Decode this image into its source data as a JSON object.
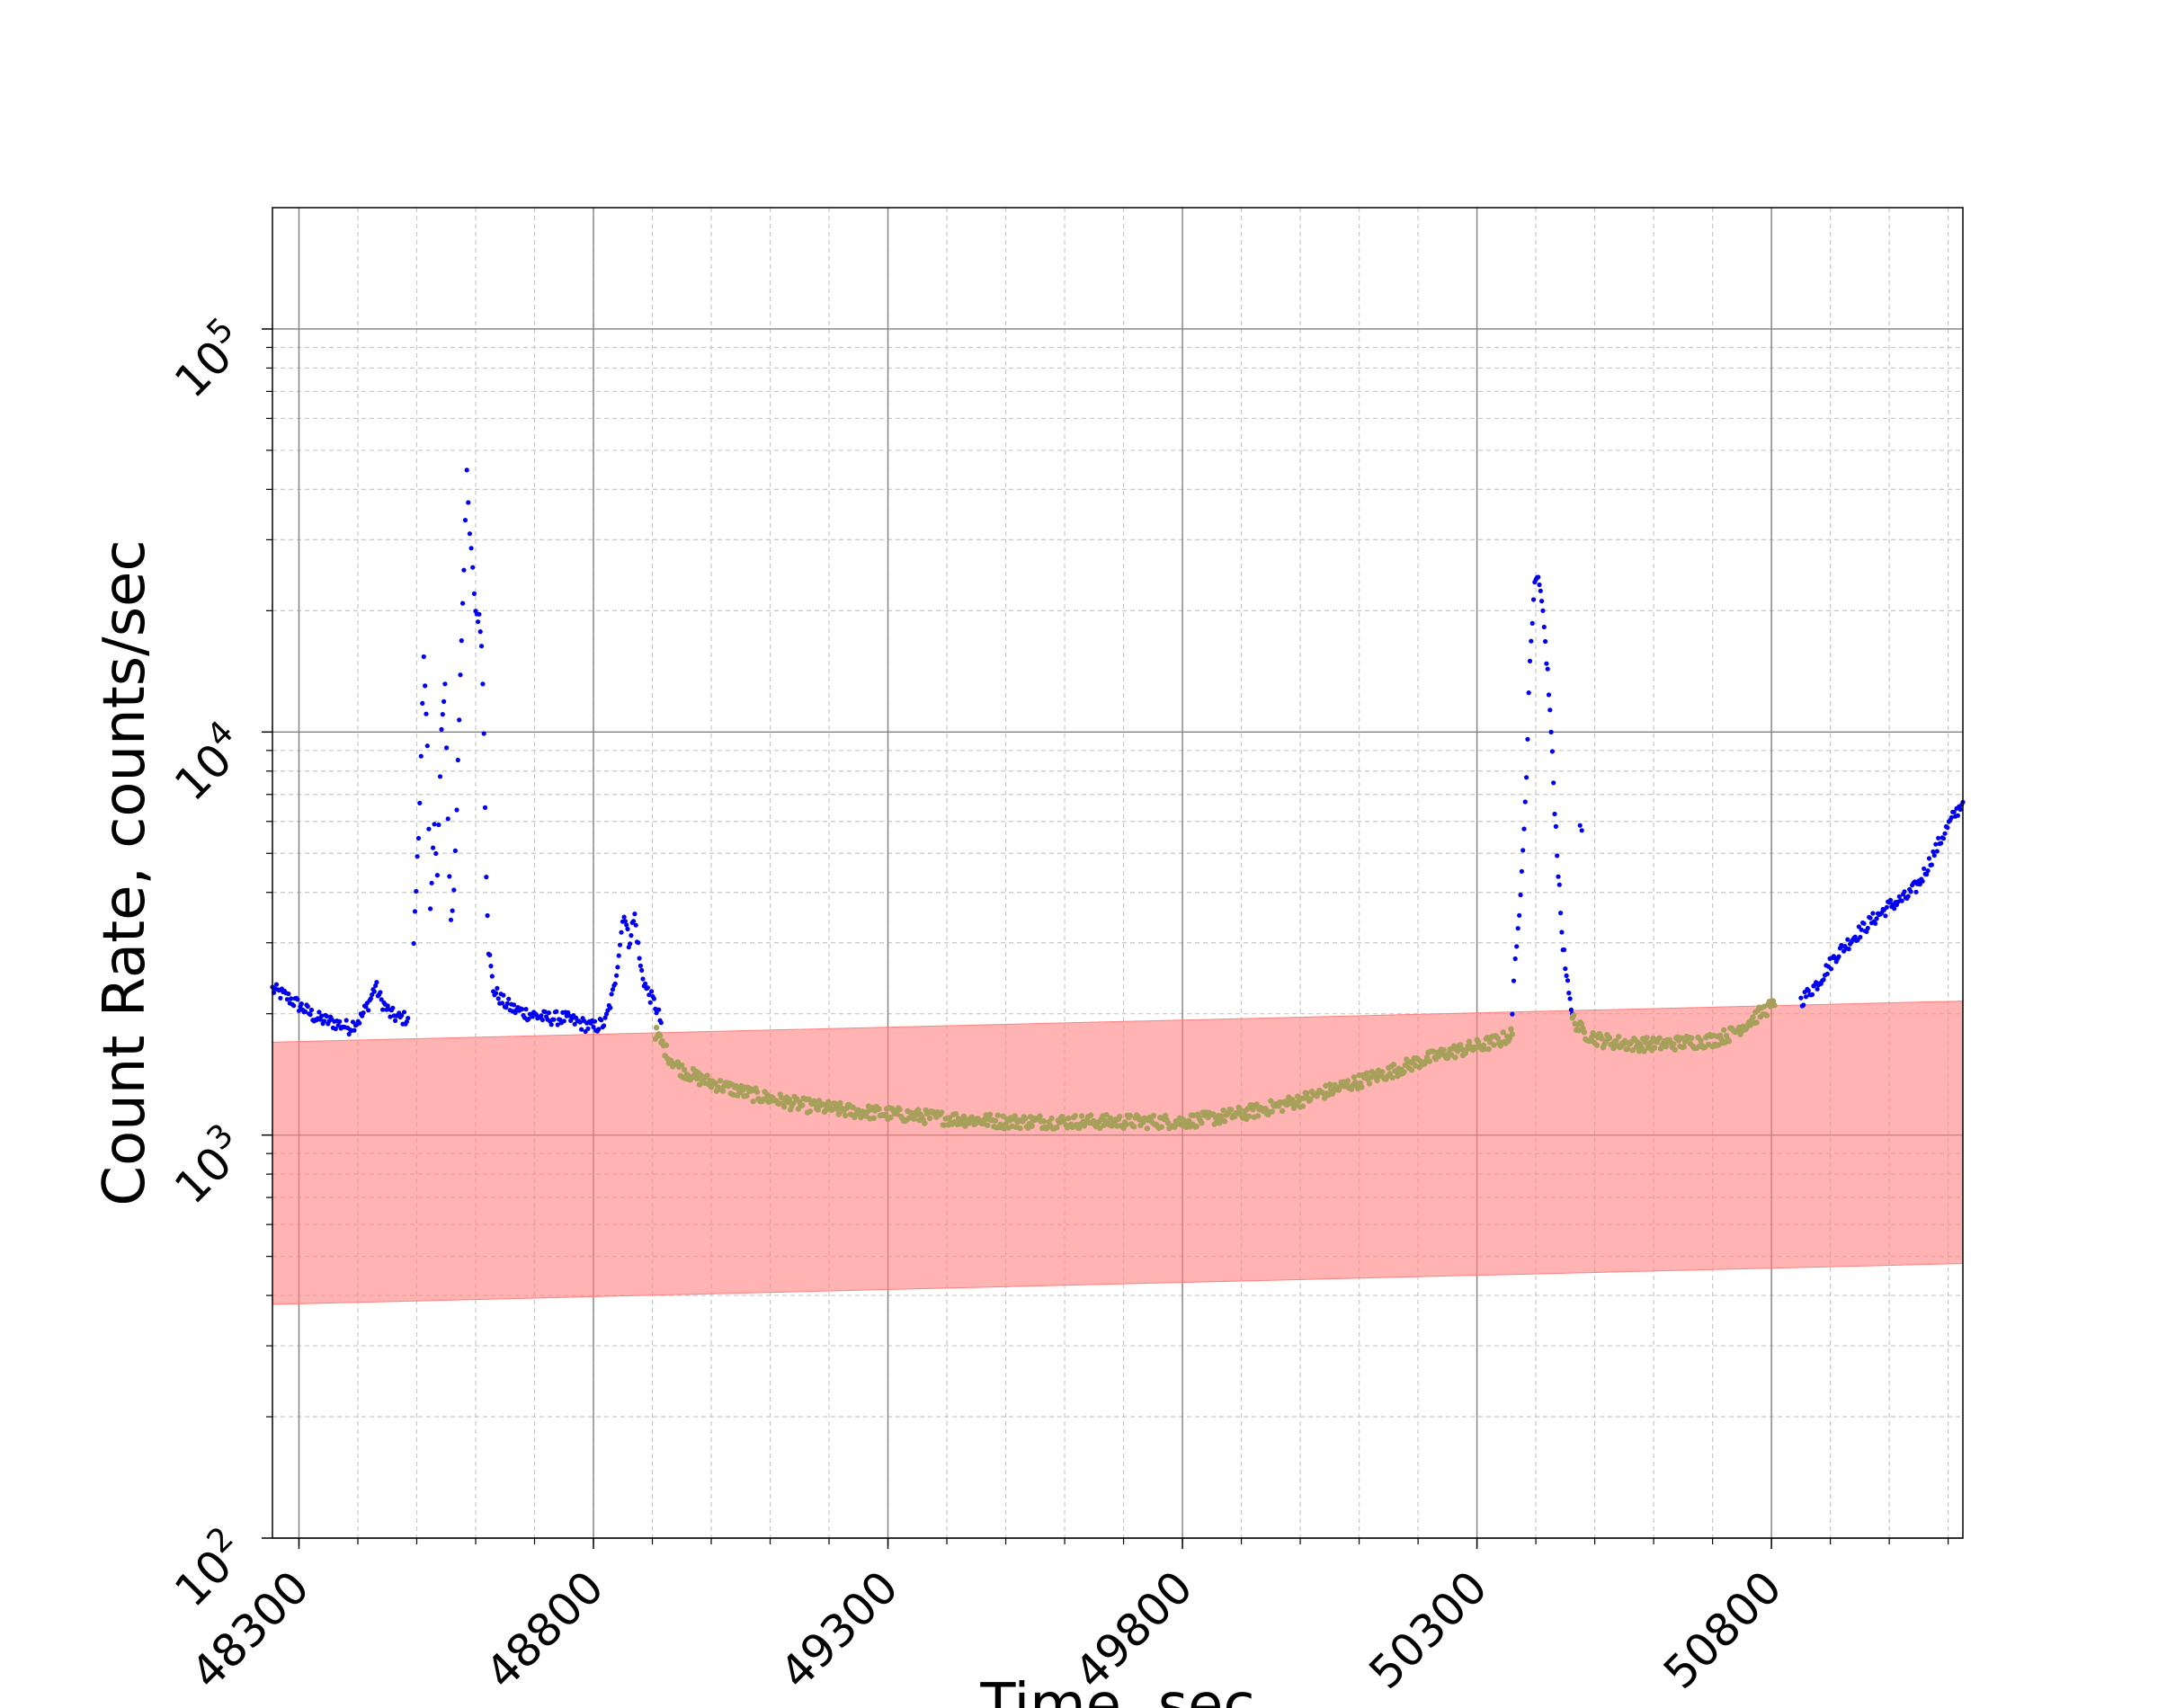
{
  "chart_data": {
    "type": "scatter",
    "title": "",
    "xlabel": "Time, sec",
    "ylabel": "Count Rate, counts/sec",
    "xlim": [
      48255,
      51125
    ],
    "ylim": [
      100,
      200000
    ],
    "yscale": "log",
    "grid": true,
    "x_ticks": [
      "48300",
      "48800",
      "49300",
      "49800",
      "50300",
      "50800"
    ],
    "x_tick_values": [
      48300,
      48800,
      49300,
      49800,
      50300,
      50800
    ],
    "y_tick_labels": [
      {
        "base": "10",
        "exp": "2",
        "value": 100
      },
      {
        "base": "10",
        "exp": "3",
        "value": 1000
      },
      {
        "base": "10",
        "exp": "4",
        "value": 10000
      },
      {
        "base": "10",
        "exp": "5",
        "value": 100000
      }
    ],
    "colors": {
      "blue_points": "#0000ee",
      "olive_points": "#a7a05a",
      "band": "#ff8080"
    },
    "band": {
      "x": [
        48255,
        51125
      ],
      "lower": [
        380,
        480
      ],
      "upper": [
        1700,
        2150
      ]
    },
    "series": [
      {
        "color_key": "blue_points",
        "segments": [
          [
            [
              48255,
              2300
            ],
            [
              48280,
              2200
            ],
            [
              48300,
              2100
            ],
            [
              48330,
              1950
            ],
            [
              48360,
              1900
            ],
            [
              48385,
              1850
            ],
            [
              48405,
              1950
            ],
            [
              48420,
              2150
            ],
            [
              48430,
              2350
            ],
            [
              48440,
              2150
            ],
            [
              48455,
              2000
            ],
            [
              48470,
              1950
            ],
            [
              48485,
              1950
            ]
          ],
          [
            [
              48495,
              3000
            ],
            [
              48505,
              6500
            ],
            [
              48512,
              16000
            ],
            [
              48518,
              9000
            ],
            [
              48523,
              3500
            ],
            [
              48530,
              6000
            ],
            [
              48535,
              4500
            ],
            [
              48542,
              10000
            ],
            [
              48548,
              13000
            ],
            [
              48553,
              6000
            ],
            [
              48558,
              3400
            ],
            [
              48563,
              4000
            ],
            [
              48568,
              6500
            ],
            [
              48574,
              14000
            ],
            [
              48580,
              26000
            ],
            [
              48585,
              43000
            ],
            [
              48590,
              31000
            ],
            [
              48595,
              25000
            ],
            [
              48600,
              20000
            ],
            [
              48606,
              19000
            ],
            [
              48610,
              17000
            ],
            [
              48614,
              10000
            ],
            [
              48618,
              4500
            ],
            [
              48622,
              2900
            ],
            [
              48630,
              2300
            ],
            [
              48645,
              2150
            ],
            [
              48665,
              2050
            ],
            [
              48690,
              2000
            ],
            [
              48720,
              1950
            ],
            [
              48750,
              1950
            ],
            [
              48775,
              1900
            ],
            [
              48800,
              1850
            ],
            [
              48820,
              1900
            ],
            [
              48835,
              2300
            ],
            [
              48845,
              3000
            ],
            [
              48852,
              3600
            ],
            [
              48860,
              3000
            ],
            [
              48870,
              3500
            ],
            [
              48880,
              2600
            ],
            [
              48890,
              2300
            ],
            [
              48905,
              2100
            ],
            [
              48915,
              1900
            ]
          ],
          [
            [
              50360,
              2000
            ],
            [
              50365,
              2700
            ],
            [
              50372,
              3500
            ],
            [
              50378,
              5000
            ],
            [
              50384,
              8000
            ],
            [
              50390,
              15000
            ],
            [
              50396,
              22000
            ],
            [
              50402,
              24000
            ],
            [
              50408,
              22000
            ],
            [
              50414,
              18000
            ],
            [
              50420,
              14000
            ],
            [
              50426,
              10000
            ],
            [
              50432,
              6500
            ],
            [
              50438,
              4500
            ],
            [
              50444,
              3200
            ],
            [
              50450,
              2600
            ],
            [
              50456,
              2200
            ],
            [
              50462,
              2000
            ]
          ],
          [
            [
              50475,
              6000
            ],
            [
              50478,
              5700
            ]
          ],
          [
            [
              50850,
              2150
            ],
            [
              50880,
              2400
            ],
            [
              50910,
              2800
            ],
            [
              50940,
              3100
            ],
            [
              50970,
              3400
            ],
            [
              51000,
              3700
            ],
            [
              51030,
              3900
            ],
            [
              51050,
              4200
            ],
            [
              51070,
              4800
            ],
            [
              51090,
              5500
            ],
            [
              51110,
              6200
            ],
            [
              51125,
              6700
            ]
          ]
        ]
      },
      {
        "color_key": "olive_points",
        "segments": [
          [
            [
              48905,
              1800
            ],
            [
              48915,
              1700
            ],
            [
              48930,
              1550
            ],
            [
              48950,
              1450
            ],
            [
              48980,
              1380
            ],
            [
              49020,
              1320
            ],
            [
              49080,
              1250
            ],
            [
              49150,
              1190
            ],
            [
              49230,
              1150
            ],
            [
              49300,
              1130
            ],
            [
              49400,
              1100
            ],
            [
              49500,
              1080
            ],
            [
              49600,
              1080
            ],
            [
              49700,
              1080
            ],
            [
              49800,
              1080
            ],
            [
              49850,
              1100
            ],
            [
              49900,
              1130
            ],
            [
              49950,
              1170
            ],
            [
              50000,
              1220
            ],
            [
              50050,
              1290
            ],
            [
              50100,
              1360
            ],
            [
              50150,
              1430
            ],
            [
              50200,
              1520
            ],
            [
              50250,
              1600
            ],
            [
              50300,
              1660
            ],
            [
              50340,
              1720
            ],
            [
              50360,
              1780
            ]
          ],
          [
            [
              50462,
              1950
            ],
            [
              50480,
              1800
            ],
            [
              50510,
              1720
            ],
            [
              50560,
              1680
            ],
            [
              50610,
              1680
            ],
            [
              50660,
              1700
            ],
            [
              50700,
              1720
            ],
            [
              50730,
              1780
            ],
            [
              50760,
              1900
            ],
            [
              50790,
              2050
            ],
            [
              50805,
              2100
            ]
          ]
        ]
      }
    ]
  }
}
